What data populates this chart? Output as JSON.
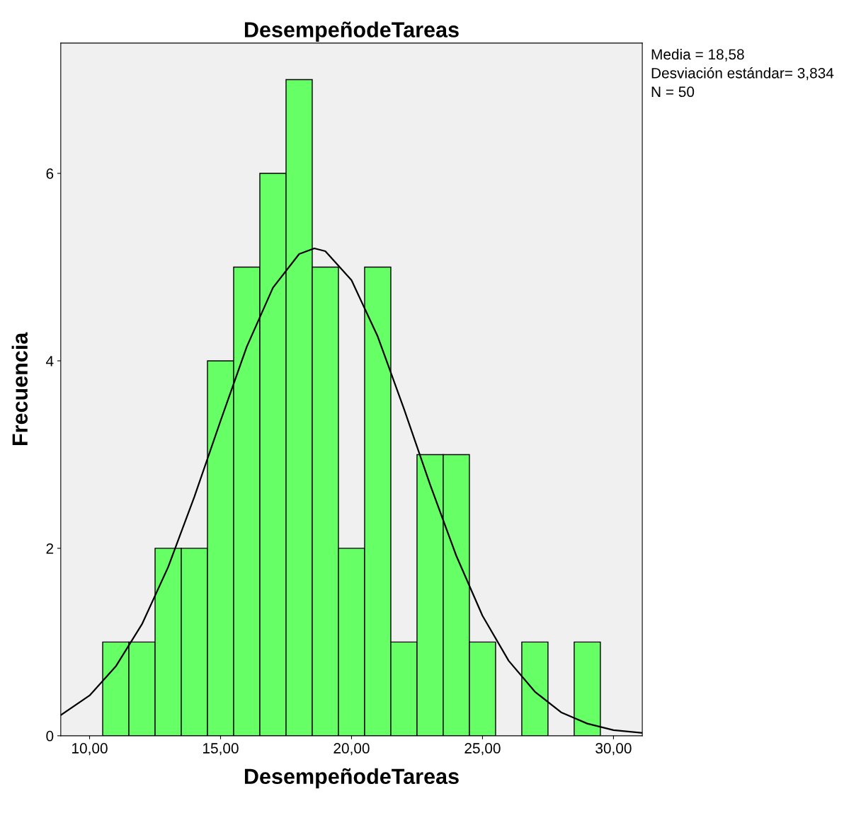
{
  "chart_data": {
    "type": "histogram",
    "title": "DesempeñodeTareas",
    "xlabel": "DesempeñodeTareas",
    "ylabel": "Frecuencia",
    "bins": [
      10.5,
      11.5,
      12.5,
      13.5,
      14.5,
      15.5,
      16.5,
      17.5,
      18.5,
      19.5,
      20.5,
      21.5,
      22.5,
      23.5,
      24.5,
      25.5,
      26.5,
      27.5,
      28.5,
      29.5
    ],
    "values": [
      1,
      1,
      2,
      2,
      4,
      5,
      6,
      7,
      5,
      2,
      5,
      1,
      3,
      3,
      1,
      0,
      1,
      0,
      1
    ],
    "color": "#66ff66",
    "series": [
      {
        "type": "line",
        "color": "#000000",
        "x": [
          8.9,
          10,
          11,
          12,
          13,
          14,
          15,
          16,
          17,
          18,
          18.58,
          19,
          20,
          21,
          22,
          23,
          24,
          25,
          26,
          27,
          28,
          29,
          30,
          31.1
        ],
        "values": [
          0.22,
          0.43,
          0.74,
          1.19,
          1.8,
          2.55,
          3.36,
          4.15,
          4.78,
          5.14,
          5.2,
          5.17,
          4.86,
          4.26,
          3.49,
          2.68,
          1.92,
          1.28,
          0.8,
          0.47,
          0.25,
          0.13,
          0.06,
          0.03
        ]
      }
    ],
    "xlim": [
      8.9,
      31.1
    ],
    "ylim": [
      0,
      7.39
    ],
    "xticks": [
      {
        "value": 10,
        "label": "10,00"
      },
      {
        "value": 15,
        "label": "15,00"
      },
      {
        "value": 20,
        "label": "20,00"
      },
      {
        "value": 25,
        "label": "25,00"
      },
      {
        "value": 30,
        "label": "30,00"
      }
    ],
    "yticks": [
      0,
      2,
      4,
      6
    ],
    "annotations": [
      "Media = 18,58",
      "Desviación estándar= 3,834",
      "N = 50"
    ],
    "grid": false,
    "marker": "none",
    "line_style": "solid"
  }
}
